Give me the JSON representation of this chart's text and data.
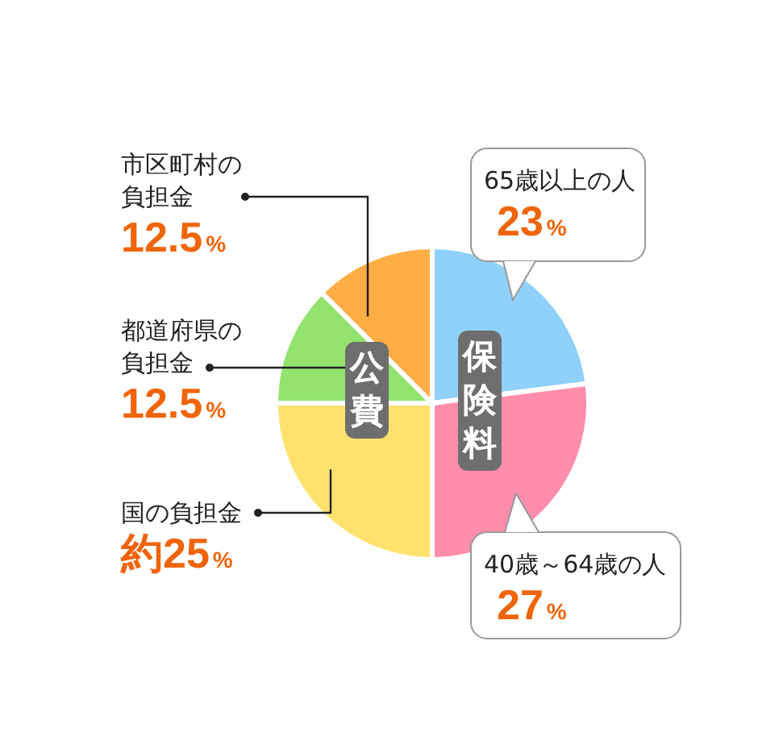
{
  "chart_data": {
    "type": "pie",
    "categories": [
      "65歳以上の人",
      "40歳～64歳の人",
      "国の負担金",
      "都道府県の負担金",
      "市区町村の負担金"
    ],
    "values": [
      23,
      27,
      25,
      12.5,
      12.5
    ],
    "value_labels": [
      "23%",
      "27%",
      "約25%",
      "12.5%",
      "12.5%"
    ],
    "colors": [
      "#8fd1fa",
      "#ff8dab",
      "#ffe26e",
      "#93e36e",
      "#ffae45"
    ],
    "annotations": [
      "保険料",
      "公費"
    ]
  }
}
